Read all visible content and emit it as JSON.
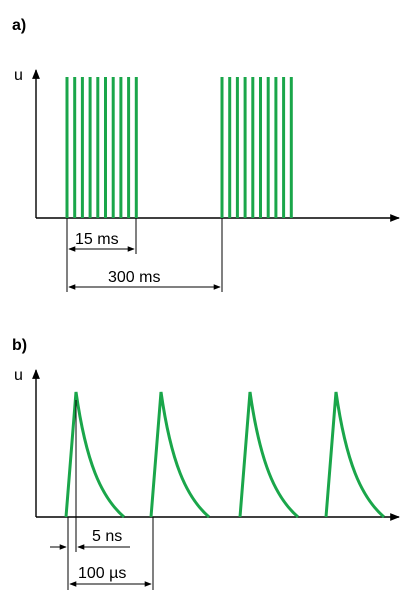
{
  "panel_a": {
    "label": "a)",
    "axis_label": "u",
    "dim_burst": "15 ms",
    "dim_period": "300 ms",
    "pulse_color": "#1aa64a",
    "burst_pulse_count": 10
  },
  "panel_b": {
    "label": "b)",
    "axis_label": "u",
    "dim_rise": "5 ns",
    "dim_period": "100 µs",
    "pulse_color": "#1aa64a",
    "pulse_count": 4
  }
}
